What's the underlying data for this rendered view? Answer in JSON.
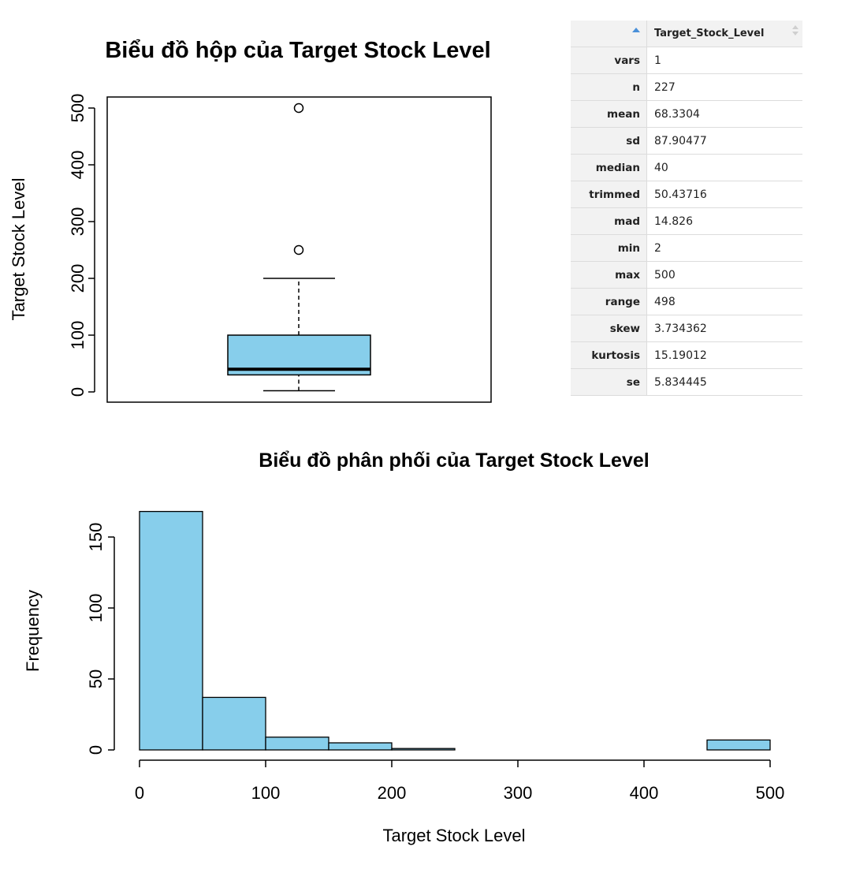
{
  "chart_data": [
    {
      "type": "box",
      "title": "Biểu đồ hộp của Target Stock Level",
      "ylabel": "Target Stock Level",
      "ylim": [
        0,
        520
      ],
      "yticks": [
        "0",
        "100",
        "200",
        "300",
        "400",
        "500"
      ],
      "min_whisker": 2,
      "q1": 30,
      "median": 40,
      "q3": 100,
      "max_whisker": 200,
      "outliers": [
        250,
        500
      ],
      "fill": "#87CEEB"
    },
    {
      "type": "bar",
      "title": "Biểu đồ phân phối của Target Stock Level",
      "xlabel": "Target Stock Level",
      "ylabel": "Frequency",
      "bins": [
        [
          0,
          50
        ],
        [
          50,
          100
        ],
        [
          100,
          150
        ],
        [
          150,
          200
        ],
        [
          200,
          250
        ],
        [
          250,
          300
        ],
        [
          300,
          350
        ],
        [
          350,
          400
        ],
        [
          400,
          450
        ],
        [
          450,
          500
        ]
      ],
      "values": [
        168,
        37,
        9,
        5,
        1,
        0,
        0,
        0,
        0,
        7
      ],
      "xlim": [
        0,
        500
      ],
      "ylim": [
        0,
        168
      ],
      "xticks": [
        "0",
        "100",
        "200",
        "300",
        "400",
        "500"
      ],
      "yticks": [
        "0",
        "50",
        "100",
        "150"
      ],
      "fill": "#87CEEB"
    },
    {
      "type": "table",
      "column_header": "Target_Stock_Level",
      "rows": [
        {
          "name": "vars",
          "value": "1"
        },
        {
          "name": "n",
          "value": "227"
        },
        {
          "name": "mean",
          "value": "68.3304"
        },
        {
          "name": "sd",
          "value": "87.90477"
        },
        {
          "name": "median",
          "value": "40"
        },
        {
          "name": "trimmed",
          "value": "50.43716"
        },
        {
          "name": "mad",
          "value": "14.826"
        },
        {
          "name": "min",
          "value": "2"
        },
        {
          "name": "max",
          "value": "500"
        },
        {
          "name": "range",
          "value": "498"
        },
        {
          "name": "skew",
          "value": "3.734362"
        },
        {
          "name": "kurtosis",
          "value": "15.19012"
        },
        {
          "name": "se",
          "value": "5.834445"
        }
      ]
    }
  ]
}
